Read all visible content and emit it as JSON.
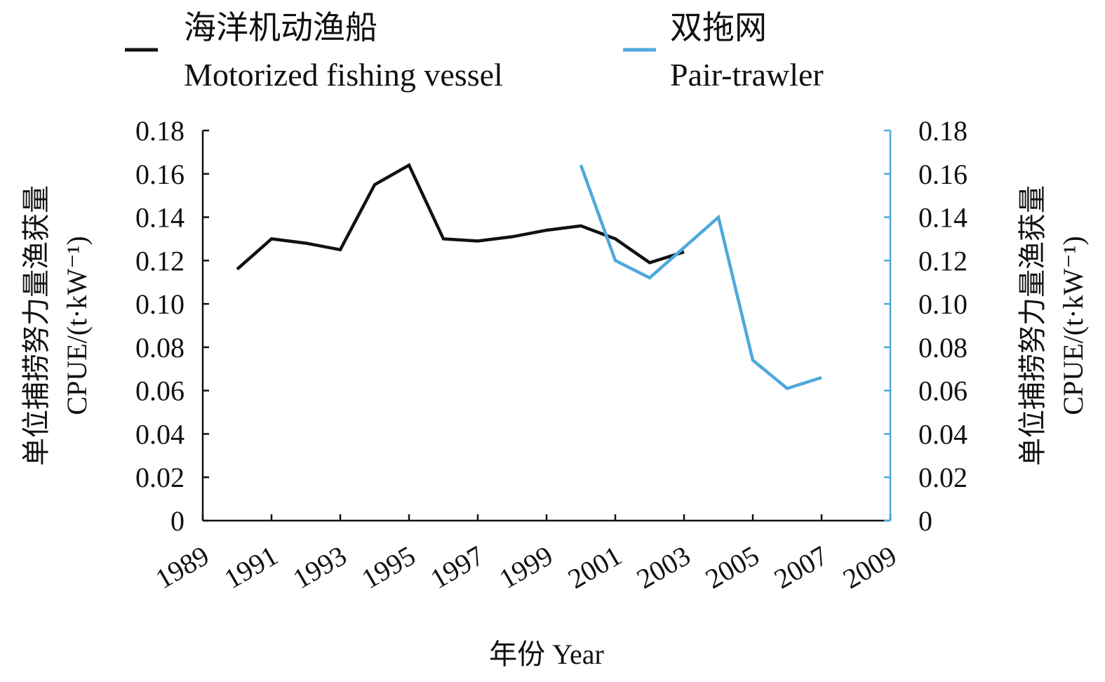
{
  "chart_data": {
    "type": "line",
    "x_axis": {
      "label": "年份 Year",
      "min": 1989,
      "max": 2009,
      "tick_labels": [
        "1989",
        "1991",
        "1993",
        "1995",
        "1997",
        "1999",
        "2001",
        "2003",
        "2005",
        "2007",
        "2009"
      ]
    },
    "y_axis_left": {
      "label_cn": "单位捕捞努力量渔获量",
      "label_en": "CPUE/(t·kW⁻¹)",
      "min": 0,
      "max": 0.18,
      "tick_labels": [
        "0",
        "0.02",
        "0.04",
        "0.06",
        "0.08",
        "0.10",
        "0.12",
        "0.14",
        "0.16",
        "0.18"
      ]
    },
    "y_axis_right": {
      "label_cn": "单位捕捞努力量渔获量",
      "label_en": "CPUE/(t·kW⁻¹)",
      "min": 0,
      "max": 0.18,
      "tick_labels": [
        "0",
        "0.02",
        "0.04",
        "0.06",
        "0.08",
        "0.10",
        "0.12",
        "0.14",
        "0.16",
        "0.18"
      ]
    },
    "legend": {
      "placement": "top"
    },
    "series": [
      {
        "name": "海洋机动渔船",
        "name_en": "Motorized fishing vessel",
        "color": "#111111",
        "axis": "left",
        "points": [
          [
            1990,
            0.116
          ],
          [
            1991,
            0.13
          ],
          [
            1992,
            0.128
          ],
          [
            1993,
            0.125
          ],
          [
            1994,
            0.155
          ],
          [
            1995,
            0.164
          ],
          [
            1996,
            0.13
          ],
          [
            1997,
            0.129
          ],
          [
            1998,
            0.131
          ],
          [
            1999,
            0.134
          ],
          [
            2000,
            0.136
          ],
          [
            2001,
            0.13
          ],
          [
            2002,
            0.119
          ],
          [
            2003,
            0.124
          ]
        ]
      },
      {
        "name": "双拖网",
        "name_en": "Pair-trawler",
        "color": "#4fa8db",
        "axis": "right",
        "points": [
          [
            2000,
            0.164
          ],
          [
            2001,
            0.12
          ],
          [
            2002,
            0.112
          ],
          [
            2003,
            0.126
          ],
          [
            2004,
            0.14
          ],
          [
            2005,
            0.074
          ],
          [
            2006,
            0.061
          ],
          [
            2007,
            0.066
          ]
        ]
      }
    ]
  }
}
